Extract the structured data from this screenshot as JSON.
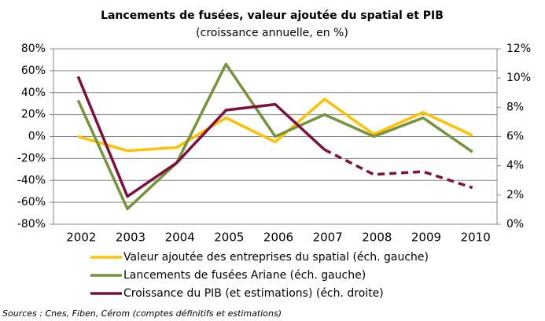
{
  "chart_data": {
    "type": "line",
    "title": "Lancements de fusées, valeur ajoutée du spatial et PIB",
    "subtitle": "(croissance annuelle, en %)",
    "categories": [
      "2002",
      "2003",
      "2004",
      "2005",
      "2006",
      "2007",
      "2008",
      "2009",
      "2010"
    ],
    "series": [
      {
        "name": "Valeur ajoutée des entreprises du spatial (éch. gauche)",
        "color": "#ffc000",
        "values": [
          0,
          -13,
          -10,
          17,
          -5,
          34,
          2,
          22,
          1
        ]
      },
      {
        "name": "Lancements de fusées Ariane (éch. gauche)",
        "color": "#77933c",
        "values": [
          33,
          -66,
          -24,
          66,
          0,
          20,
          0,
          17,
          -14
        ]
      },
      {
        "name": "Croissance du PIB (et estimations) (éch. droite)",
        "color": "#7f0f3e",
        "axis": "y2",
        "dash_start": "2007",
        "values": [
          10.1,
          1.9,
          4.2,
          7.8,
          8.2,
          5.1,
          3.4,
          3.6,
          2.5
        ]
      }
    ],
    "ylim": [
      -80,
      80
    ],
    "yticks": [
      {
        "value": -80,
        "label": "-80%"
      },
      {
        "value": -60,
        "label": "-60%"
      },
      {
        "value": -40,
        "label": "-40%"
      },
      {
        "value": -20,
        "label": "-20%"
      },
      {
        "value": 0,
        "label": "0%"
      },
      {
        "value": 20,
        "label": "20%"
      },
      {
        "value": 40,
        "label": "40%"
      },
      {
        "value": 60,
        "label": "60%"
      },
      {
        "value": 80,
        "label": "80%"
      }
    ],
    "y2lim": [
      0,
      12
    ],
    "y2ticks": [
      {
        "value": 0,
        "label": "0%"
      },
      {
        "value": 2,
        "label": "2%"
      },
      {
        "value": 4,
        "label": "4%"
      },
      {
        "value": 6,
        "label": "6%"
      },
      {
        "value": 8,
        "label": "8%"
      },
      {
        "value": 10,
        "label": "10%"
      },
      {
        "value": 12,
        "label": "12%"
      }
    ],
    "grid": true,
    "source": "Sources : Cnes, Fiben, Cérom (comptes définitifs et estimations)"
  }
}
